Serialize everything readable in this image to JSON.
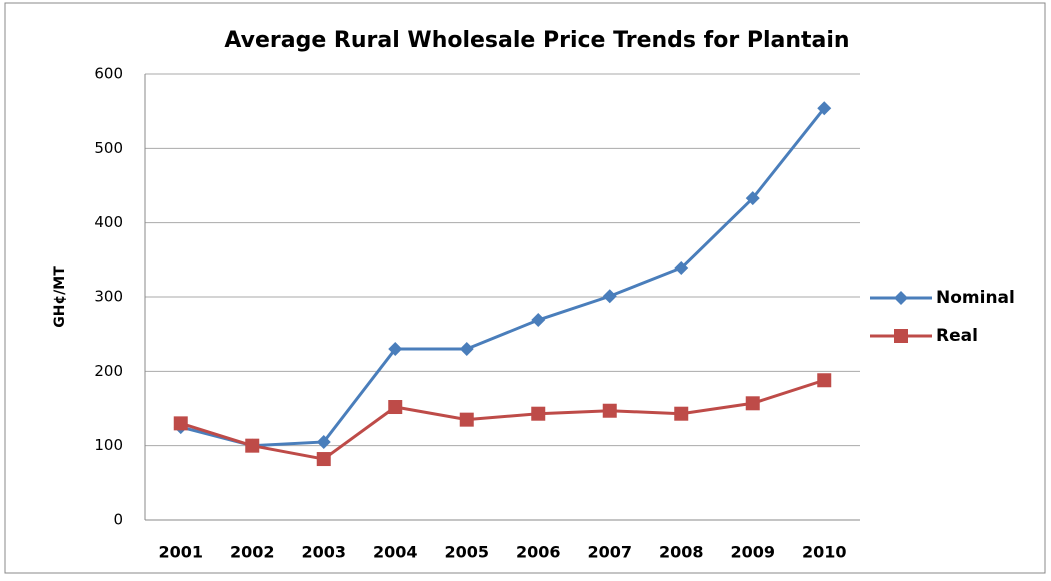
{
  "chart_data": {
    "type": "line",
    "title": "Average Rural Wholesale Price Trends for Plantain",
    "y_label": "GH¢/MT",
    "categories": [
      "2001",
      "2002",
      "2003",
      "2004",
      "2005",
      "2006",
      "2007",
      "2008",
      "2009",
      "2010"
    ],
    "series": [
      {
        "name": "Nominal",
        "color": "#4a7ebb",
        "marker": "diamond",
        "values": [
          125,
          100,
          105,
          230,
          230,
          269,
          301,
          339,
          433,
          554
        ]
      },
      {
        "name": "Real",
        "color": "#be4b48",
        "marker": "square",
        "values": [
          130,
          100,
          82,
          152,
          135,
          143,
          147,
          143,
          157,
          188
        ]
      }
    ],
    "ylim": [
      0,
      600
    ],
    "yticks": [
      0,
      100,
      200,
      300,
      400,
      500,
      600
    ],
    "grid": true,
    "legend": "right"
  }
}
